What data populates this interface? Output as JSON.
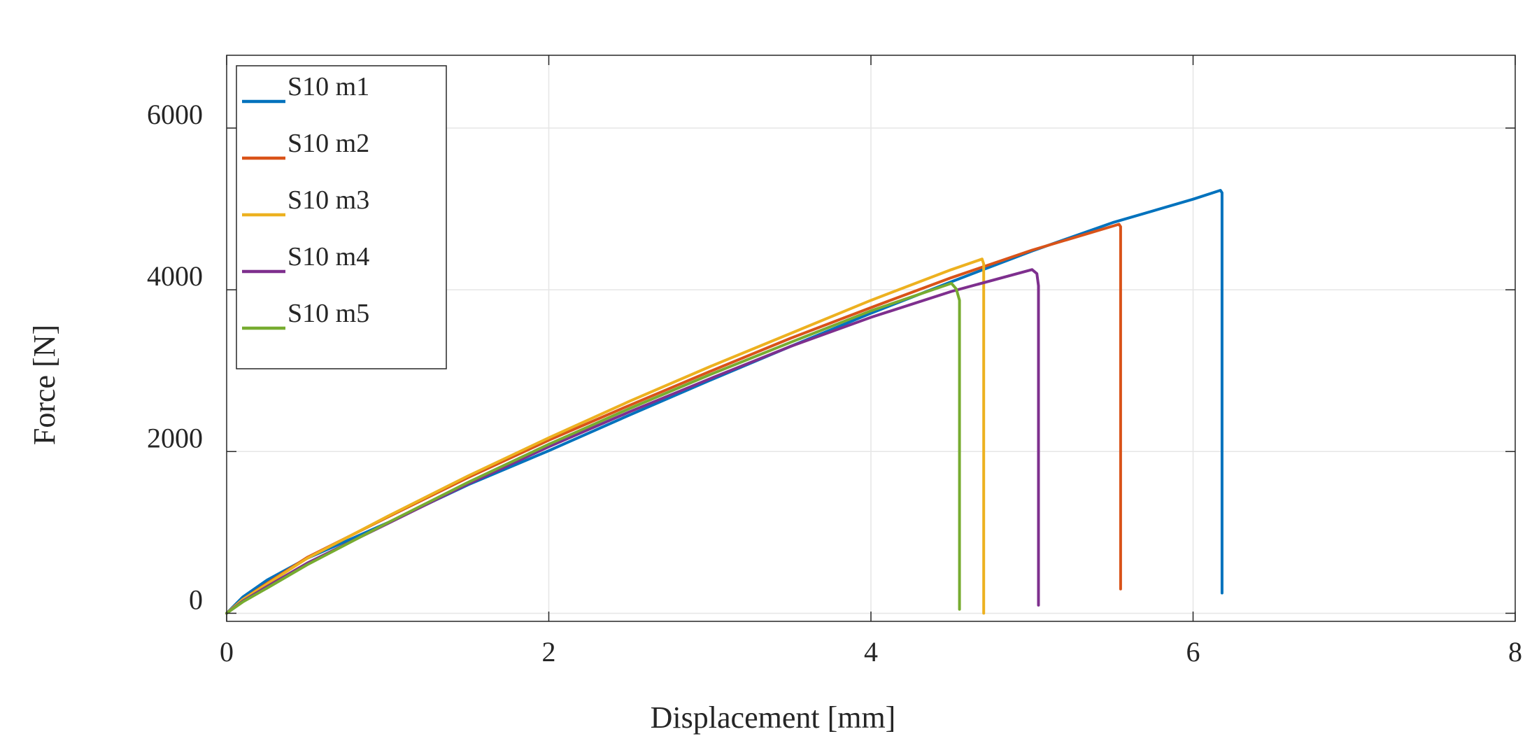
{
  "chart_data": {
    "type": "line",
    "title": "",
    "xlabel": "Displacement [mm]",
    "ylabel": "Force [N]",
    "xlim": [
      0,
      8
    ],
    "ylim": [
      -100,
      6900
    ],
    "xticks": [
      0,
      2,
      4,
      6,
      8
    ],
    "yticks": [
      0,
      2000,
      4000,
      6000
    ],
    "xtick_labels": [
      "0",
      "2",
      "4",
      "6",
      "8"
    ],
    "ytick_labels": [
      "0",
      "2000",
      "4000",
      "6000"
    ],
    "grid": true,
    "legend_position": "top-left",
    "series": [
      {
        "name": "S10 m1",
        "color": "#0072BD",
        "x": [
          0,
          0.1,
          0.25,
          0.5,
          1.0,
          1.5,
          2.0,
          2.5,
          3.0,
          3.5,
          4.0,
          4.5,
          5.0,
          5.5,
          6.0,
          6.17,
          6.18,
          6.18
        ],
        "y": [
          0,
          200,
          410,
          680,
          1120,
          1590,
          2010,
          2450,
          2880,
          3300,
          3710,
          4100,
          4480,
          4830,
          5120,
          5230,
          5200,
          250
        ]
      },
      {
        "name": "S10 m2",
        "color": "#D95319",
        "x": [
          0,
          0.1,
          0.25,
          0.5,
          1.0,
          1.5,
          2.0,
          2.5,
          3.0,
          3.5,
          4.0,
          4.5,
          5.0,
          5.54,
          5.55,
          5.55
        ],
        "y": [
          0,
          170,
          370,
          690,
          1190,
          1680,
          2140,
          2570,
          2990,
          3400,
          3780,
          4150,
          4490,
          4810,
          4780,
          300
        ]
      },
      {
        "name": "S10 m3",
        "color": "#EDB120",
        "x": [
          0,
          0.1,
          0.25,
          0.5,
          1.0,
          1.5,
          2.0,
          2.5,
          3.0,
          3.5,
          4.0,
          4.5,
          4.69,
          4.7,
          4.7
        ],
        "y": [
          0,
          170,
          360,
          680,
          1200,
          1700,
          2170,
          2620,
          3050,
          3460,
          3870,
          4250,
          4380,
          4320,
          0
        ]
      },
      {
        "name": "S10 m4",
        "color": "#7E2F8E",
        "x": [
          0,
          0.1,
          0.25,
          0.5,
          1.0,
          1.5,
          2.0,
          2.5,
          3.0,
          3.5,
          4.0,
          4.5,
          5.0,
          5.03,
          5.04,
          5.04
        ],
        "y": [
          0,
          150,
          330,
          620,
          1110,
          1600,
          2060,
          2490,
          2900,
          3300,
          3660,
          3980,
          4250,
          4200,
          4050,
          100
        ]
      },
      {
        "name": "S10 m5",
        "color": "#77AC30",
        "x": [
          0,
          0.1,
          0.25,
          0.5,
          1.0,
          1.5,
          2.0,
          2.5,
          3.0,
          3.5,
          4.0,
          4.5,
          4.53,
          4.55,
          4.55
        ],
        "y": [
          0,
          140,
          310,
          600,
          1120,
          1620,
          2090,
          2530,
          2950,
          3350,
          3740,
          4080,
          4010,
          3870,
          50
        ]
      }
    ]
  }
}
